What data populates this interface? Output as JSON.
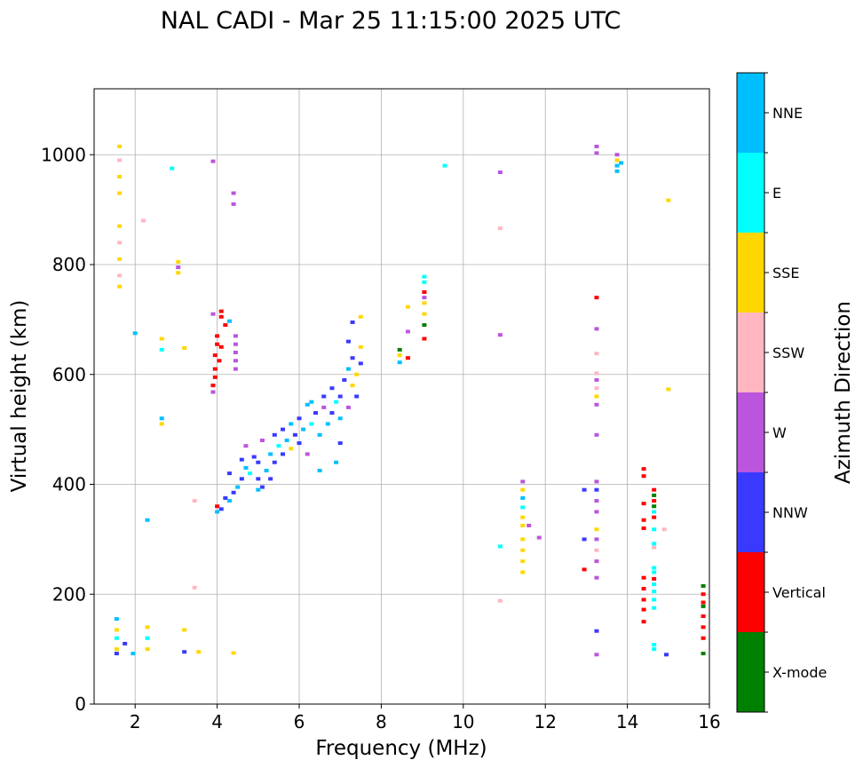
{
  "chart_data": {
    "type": "scatter",
    "title": "NAL CADI - Mar 25 11:15:00 2025 UTC",
    "xlabel": "Frequency (MHz)",
    "ylabel": "Virtual height (km)",
    "xlim": [
      1,
      16
    ],
    "ylim": [
      0,
      1120
    ],
    "xticks": [
      2,
      4,
      6,
      8,
      10,
      12,
      14,
      16
    ],
    "yticks": [
      0,
      200,
      400,
      600,
      800,
      1000
    ],
    "grid": true,
    "colorbar": {
      "label": "Azimuth Direction",
      "categories": [
        {
          "name": "X-mode",
          "color": "#008000"
        },
        {
          "name": "Vertical",
          "color": "#ff0000"
        },
        {
          "name": "NNW",
          "color": "#3a3aff"
        },
        {
          "name": "W",
          "color": "#bb55dd"
        },
        {
          "name": "SSW",
          "color": "#ffb6c1"
        },
        {
          "name": "SSE",
          "color": "#ffd700"
        },
        {
          "name": "E",
          "color": "#00ffff"
        },
        {
          "name": "NNE",
          "color": "#00bfff"
        }
      ]
    },
    "points": [
      {
        "f": 1.62,
        "h": 1015,
        "c": "SSE"
      },
      {
        "f": 1.62,
        "h": 990,
        "c": "SSW"
      },
      {
        "f": 1.62,
        "h": 960,
        "c": "SSE"
      },
      {
        "f": 1.62,
        "h": 930,
        "c": "SSE"
      },
      {
        "f": 1.62,
        "h": 870,
        "c": "SSE"
      },
      {
        "f": 1.62,
        "h": 840,
        "c": "SSW"
      },
      {
        "f": 1.62,
        "h": 810,
        "c": "SSE"
      },
      {
        "f": 1.62,
        "h": 780,
        "c": "SSW"
      },
      {
        "f": 1.62,
        "h": 760,
        "c": "SSE"
      },
      {
        "f": 1.55,
        "h": 155,
        "c": "NNE"
      },
      {
        "f": 1.55,
        "h": 135,
        "c": "SSE"
      },
      {
        "f": 1.55,
        "h": 120,
        "c": "E"
      },
      {
        "f": 1.55,
        "h": 100,
        "c": "SSE"
      },
      {
        "f": 1.55,
        "h": 92,
        "c": "NNW"
      },
      {
        "f": 1.75,
        "h": 110,
        "c": "NNW"
      },
      {
        "f": 1.95,
        "h": 92,
        "c": "NNE"
      },
      {
        "f": 2.3,
        "h": 140,
        "c": "SSE"
      },
      {
        "f": 2.3,
        "h": 120,
        "c": "E"
      },
      {
        "f": 2.3,
        "h": 100,
        "c": "SSE"
      },
      {
        "f": 2.3,
        "h": 335,
        "c": "NNE"
      },
      {
        "f": 2.2,
        "h": 880,
        "c": "SSW"
      },
      {
        "f": 2.0,
        "h": 675,
        "c": "NNE"
      },
      {
        "f": 2.65,
        "h": 665,
        "c": "SSE"
      },
      {
        "f": 2.65,
        "h": 645,
        "c": "E"
      },
      {
        "f": 2.65,
        "h": 520,
        "c": "NNE"
      },
      {
        "f": 2.65,
        "h": 510,
        "c": "SSE"
      },
      {
        "f": 2.9,
        "h": 975,
        "c": "E"
      },
      {
        "f": 3.05,
        "h": 805,
        "c": "SSE"
      },
      {
        "f": 3.05,
        "h": 795,
        "c": "W"
      },
      {
        "f": 3.05,
        "h": 785,
        "c": "SSE"
      },
      {
        "f": 3.2,
        "h": 648,
        "c": "SSE"
      },
      {
        "f": 3.2,
        "h": 95,
        "c": "NNW"
      },
      {
        "f": 3.2,
        "h": 135,
        "c": "SSE"
      },
      {
        "f": 3.45,
        "h": 212,
        "c": "SSW"
      },
      {
        "f": 3.45,
        "h": 370,
        "c": "SSW"
      },
      {
        "f": 3.55,
        "h": 95,
        "c": "SSE"
      },
      {
        "f": 3.9,
        "h": 988,
        "c": "W"
      },
      {
        "f": 4.4,
        "h": 930,
        "c": "W"
      },
      {
        "f": 4.4,
        "h": 910,
        "c": "W"
      },
      {
        "f": 3.9,
        "h": 710,
        "c": "W"
      },
      {
        "f": 4.1,
        "h": 715,
        "c": "Vertical"
      },
      {
        "f": 4.1,
        "h": 705,
        "c": "Vertical"
      },
      {
        "f": 4.2,
        "h": 690,
        "c": "Vertical"
      },
      {
        "f": 4.3,
        "h": 697,
        "c": "NNE"
      },
      {
        "f": 4.0,
        "h": 670,
        "c": "Vertical"
      },
      {
        "f": 4.0,
        "h": 655,
        "c": "Vertical"
      },
      {
        "f": 4.1,
        "h": 650,
        "c": "Vertical"
      },
      {
        "f": 3.95,
        "h": 635,
        "c": "Vertical"
      },
      {
        "f": 4.05,
        "h": 625,
        "c": "Vertical"
      },
      {
        "f": 3.95,
        "h": 610,
        "c": "Vertical"
      },
      {
        "f": 3.95,
        "h": 595,
        "c": "Vertical"
      },
      {
        "f": 3.9,
        "h": 580,
        "c": "Vertical"
      },
      {
        "f": 3.9,
        "h": 568,
        "c": "W"
      },
      {
        "f": 4.45,
        "h": 670,
        "c": "W"
      },
      {
        "f": 4.45,
        "h": 655,
        "c": "W"
      },
      {
        "f": 4.45,
        "h": 640,
        "c": "W"
      },
      {
        "f": 4.45,
        "h": 625,
        "c": "W"
      },
      {
        "f": 4.45,
        "h": 610,
        "c": "W"
      },
      {
        "f": 4.4,
        "h": 93,
        "c": "SSE"
      },
      {
        "f": 4.0,
        "h": 360,
        "c": "Vertical"
      },
      {
        "f": 4.0,
        "h": 350,
        "c": "NNE"
      },
      {
        "f": 4.1,
        "h": 355,
        "c": "NNW"
      },
      {
        "f": 4.2,
        "h": 375,
        "c": "NNW"
      },
      {
        "f": 4.3,
        "h": 370,
        "c": "NNE"
      },
      {
        "f": 4.4,
        "h": 385,
        "c": "NNW"
      },
      {
        "f": 4.5,
        "h": 395,
        "c": "NNE"
      },
      {
        "f": 4.3,
        "h": 420,
        "c": "NNW"
      },
      {
        "f": 4.6,
        "h": 410,
        "c": "NNW"
      },
      {
        "f": 4.7,
        "h": 430,
        "c": "NNE"
      },
      {
        "f": 4.6,
        "h": 445,
        "c": "NNW"
      },
      {
        "f": 4.8,
        "h": 420,
        "c": "E"
      },
      {
        "f": 4.9,
        "h": 450,
        "c": "NNW"
      },
      {
        "f": 5.0,
        "h": 440,
        "c": "NNW"
      },
      {
        "f": 4.7,
        "h": 470,
        "c": "W"
      },
      {
        "f": 5.1,
        "h": 395,
        "c": "NNW"
      },
      {
        "f": 5.0,
        "h": 410,
        "c": "NNW"
      },
      {
        "f": 5.2,
        "h": 425,
        "c": "NNE"
      },
      {
        "f": 5.3,
        "h": 410,
        "c": "NNW"
      },
      {
        "f": 5.3,
        "h": 455,
        "c": "NNE"
      },
      {
        "f": 5.1,
        "h": 480,
        "c": "W"
      },
      {
        "f": 5.4,
        "h": 440,
        "c": "NNW"
      },
      {
        "f": 5.5,
        "h": 470,
        "c": "E"
      },
      {
        "f": 5.4,
        "h": 490,
        "c": "NNW"
      },
      {
        "f": 5.6,
        "h": 455,
        "c": "NNW"
      },
      {
        "f": 5.7,
        "h": 480,
        "c": "NNE"
      },
      {
        "f": 5.6,
        "h": 500,
        "c": "NNW"
      },
      {
        "f": 5.8,
        "h": 465,
        "c": "SSE"
      },
      {
        "f": 5.9,
        "h": 490,
        "c": "NNW"
      },
      {
        "f": 5.8,
        "h": 510,
        "c": "NNE"
      },
      {
        "f": 6.0,
        "h": 475,
        "c": "NNW"
      },
      {
        "f": 6.1,
        "h": 500,
        "c": "NNE"
      },
      {
        "f": 6.0,
        "h": 520,
        "c": "NNW"
      },
      {
        "f": 6.2,
        "h": 545,
        "c": "NNE"
      },
      {
        "f": 6.3,
        "h": 510,
        "c": "E"
      },
      {
        "f": 6.4,
        "h": 530,
        "c": "NNW"
      },
      {
        "f": 6.3,
        "h": 550,
        "c": "NNE"
      },
      {
        "f": 6.5,
        "h": 490,
        "c": "NNE"
      },
      {
        "f": 6.6,
        "h": 540,
        "c": "W"
      },
      {
        "f": 6.7,
        "h": 510,
        "c": "NNE"
      },
      {
        "f": 6.6,
        "h": 560,
        "c": "NNW"
      },
      {
        "f": 6.8,
        "h": 530,
        "c": "NNW"
      },
      {
        "f": 6.9,
        "h": 550,
        "c": "E"
      },
      {
        "f": 6.8,
        "h": 575,
        "c": "NNW"
      },
      {
        "f": 7.0,
        "h": 520,
        "c": "NNE"
      },
      {
        "f": 7.0,
        "h": 560,
        "c": "NNW"
      },
      {
        "f": 7.1,
        "h": 590,
        "c": "NNW"
      },
      {
        "f": 7.2,
        "h": 540,
        "c": "W"
      },
      {
        "f": 7.2,
        "h": 610,
        "c": "NNE"
      },
      {
        "f": 7.3,
        "h": 580,
        "c": "SSE"
      },
      {
        "f": 7.3,
        "h": 630,
        "c": "NNW"
      },
      {
        "f": 7.4,
        "h": 560,
        "c": "NNW"
      },
      {
        "f": 7.4,
        "h": 600,
        "c": "SSE"
      },
      {
        "f": 7.5,
        "h": 620,
        "c": "NNW"
      },
      {
        "f": 7.5,
        "h": 650,
        "c": "SSE"
      },
      {
        "f": 7.3,
        "h": 695,
        "c": "NNW"
      },
      {
        "f": 7.5,
        "h": 705,
        "c": "SSE"
      },
      {
        "f": 7.2,
        "h": 660,
        "c": "NNW"
      },
      {
        "f": 6.9,
        "h": 440,
        "c": "NNE"
      },
      {
        "f": 6.5,
        "h": 425,
        "c": "NNE"
      },
      {
        "f": 7.0,
        "h": 475,
        "c": "NNW"
      },
      {
        "f": 5.0,
        "h": 390,
        "c": "NNE"
      },
      {
        "f": 6.2,
        "h": 455,
        "c": "W"
      },
      {
        "f": 8.45,
        "h": 645,
        "c": "X-mode"
      },
      {
        "f": 8.45,
        "h": 635,
        "c": "SSE"
      },
      {
        "f": 8.45,
        "h": 622,
        "c": "NNE"
      },
      {
        "f": 8.65,
        "h": 630,
        "c": "Vertical"
      },
      {
        "f": 8.65,
        "h": 678,
        "c": "W"
      },
      {
        "f": 8.65,
        "h": 723,
        "c": "SSE"
      },
      {
        "f": 9.05,
        "h": 778,
        "c": "E"
      },
      {
        "f": 9.05,
        "h": 768,
        "c": "E"
      },
      {
        "f": 9.05,
        "h": 750,
        "c": "Vertical"
      },
      {
        "f": 9.05,
        "h": 740,
        "c": "W"
      },
      {
        "f": 9.05,
        "h": 730,
        "c": "SSE"
      },
      {
        "f": 9.05,
        "h": 710,
        "c": "SSE"
      },
      {
        "f": 9.05,
        "h": 690,
        "c": "X-mode"
      },
      {
        "f": 9.05,
        "h": 665,
        "c": "Vertical"
      },
      {
        "f": 9.55,
        "h": 980,
        "c": "E"
      },
      {
        "f": 10.9,
        "h": 968,
        "c": "W"
      },
      {
        "f": 10.9,
        "h": 866,
        "c": "SSW"
      },
      {
        "f": 10.9,
        "h": 672,
        "c": "W"
      },
      {
        "f": 10.9,
        "h": 287,
        "c": "E"
      },
      {
        "f": 10.9,
        "h": 188,
        "c": "SSW"
      },
      {
        "f": 11.45,
        "h": 405,
        "c": "W"
      },
      {
        "f": 11.45,
        "h": 390,
        "c": "SSE"
      },
      {
        "f": 11.45,
        "h": 375,
        "c": "NNE"
      },
      {
        "f": 11.45,
        "h": 358,
        "c": "E"
      },
      {
        "f": 11.45,
        "h": 340,
        "c": "SSE"
      },
      {
        "f": 11.45,
        "h": 325,
        "c": "SSE"
      },
      {
        "f": 11.45,
        "h": 300,
        "c": "SSE"
      },
      {
        "f": 11.45,
        "h": 280,
        "c": "SSE"
      },
      {
        "f": 11.45,
        "h": 260,
        "c": "SSE"
      },
      {
        "f": 11.45,
        "h": 240,
        "c": "SSE"
      },
      {
        "f": 11.6,
        "h": 325,
        "c": "W"
      },
      {
        "f": 11.85,
        "h": 303,
        "c": "W"
      },
      {
        "f": 13.25,
        "h": 1015,
        "c": "W"
      },
      {
        "f": 13.25,
        "h": 1003,
        "c": "W"
      },
      {
        "f": 13.25,
        "h": 740,
        "c": "Vertical"
      },
      {
        "f": 13.25,
        "h": 683,
        "c": "W"
      },
      {
        "f": 13.25,
        "h": 638,
        "c": "SSW"
      },
      {
        "f": 13.25,
        "h": 602,
        "c": "SSW"
      },
      {
        "f": 13.25,
        "h": 590,
        "c": "W"
      },
      {
        "f": 13.25,
        "h": 575,
        "c": "SSW"
      },
      {
        "f": 13.25,
        "h": 560,
        "c": "SSE"
      },
      {
        "f": 13.25,
        "h": 545,
        "c": "W"
      },
      {
        "f": 13.25,
        "h": 490,
        "c": "W"
      },
      {
        "f": 13.25,
        "h": 405,
        "c": "W"
      },
      {
        "f": 13.25,
        "h": 390,
        "c": "NNW"
      },
      {
        "f": 13.25,
        "h": 370,
        "c": "W"
      },
      {
        "f": 13.25,
        "h": 350,
        "c": "W"
      },
      {
        "f": 13.25,
        "h": 318,
        "c": "SSE"
      },
      {
        "f": 13.25,
        "h": 300,
        "c": "W"
      },
      {
        "f": 13.25,
        "h": 280,
        "c": "SSW"
      },
      {
        "f": 13.25,
        "h": 260,
        "c": "W"
      },
      {
        "f": 13.25,
        "h": 230,
        "c": "W"
      },
      {
        "f": 13.25,
        "h": 133,
        "c": "NNW"
      },
      {
        "f": 13.25,
        "h": 90,
        "c": "W"
      },
      {
        "f": 12.95,
        "h": 390,
        "c": "NNW"
      },
      {
        "f": 12.95,
        "h": 300,
        "c": "NNW"
      },
      {
        "f": 12.95,
        "h": 245,
        "c": "Vertical"
      },
      {
        "f": 13.75,
        "h": 1000,
        "c": "W"
      },
      {
        "f": 13.75,
        "h": 990,
        "c": "SSE"
      },
      {
        "f": 13.75,
        "h": 980,
        "c": "NNE"
      },
      {
        "f": 13.75,
        "h": 970,
        "c": "NNE"
      },
      {
        "f": 13.85,
        "h": 985,
        "c": "NNE"
      },
      {
        "f": 14.4,
        "h": 428,
        "c": "Vertical"
      },
      {
        "f": 14.4,
        "h": 415,
        "c": "Vertical"
      },
      {
        "f": 14.4,
        "h": 365,
        "c": "Vertical"
      },
      {
        "f": 14.4,
        "h": 335,
        "c": "Vertical"
      },
      {
        "f": 14.4,
        "h": 320,
        "c": "Vertical"
      },
      {
        "f": 14.4,
        "h": 230,
        "c": "Vertical"
      },
      {
        "f": 14.4,
        "h": 210,
        "c": "Vertical"
      },
      {
        "f": 14.4,
        "h": 190,
        "c": "Vertical"
      },
      {
        "f": 14.4,
        "h": 172,
        "c": "Vertical"
      },
      {
        "f": 14.4,
        "h": 150,
        "c": "Vertical"
      },
      {
        "f": 14.65,
        "h": 390,
        "c": "Vertical"
      },
      {
        "f": 14.65,
        "h": 380,
        "c": "X-mode"
      },
      {
        "f": 14.65,
        "h": 370,
        "c": "Vertical"
      },
      {
        "f": 14.65,
        "h": 360,
        "c": "X-mode"
      },
      {
        "f": 14.65,
        "h": 350,
        "c": "E"
      },
      {
        "f": 14.65,
        "h": 340,
        "c": "Vertical"
      },
      {
        "f": 14.65,
        "h": 318,
        "c": "E"
      },
      {
        "f": 14.65,
        "h": 292,
        "c": "E"
      },
      {
        "f": 14.65,
        "h": 285,
        "c": "SSW"
      },
      {
        "f": 14.65,
        "h": 248,
        "c": "E"
      },
      {
        "f": 14.65,
        "h": 240,
        "c": "E"
      },
      {
        "f": 14.65,
        "h": 228,
        "c": "Vertical"
      },
      {
        "f": 14.65,
        "h": 218,
        "c": "E"
      },
      {
        "f": 14.65,
        "h": 205,
        "c": "E"
      },
      {
        "f": 14.65,
        "h": 190,
        "c": "E"
      },
      {
        "f": 14.65,
        "h": 175,
        "c": "E"
      },
      {
        "f": 14.65,
        "h": 108,
        "c": "E"
      },
      {
        "f": 14.65,
        "h": 100,
        "c": "E"
      },
      {
        "f": 14.9,
        "h": 318,
        "c": "SSW"
      },
      {
        "f": 14.95,
        "h": 90,
        "c": "NNW"
      },
      {
        "f": 15.0,
        "h": 917,
        "c": "SSE"
      },
      {
        "f": 15.0,
        "h": 573,
        "c": "SSE"
      },
      {
        "f": 15.85,
        "h": 215,
        "c": "X-mode"
      },
      {
        "f": 15.85,
        "h": 200,
        "c": "Vertical"
      },
      {
        "f": 15.85,
        "h": 185,
        "c": "Vertical"
      },
      {
        "f": 15.85,
        "h": 178,
        "c": "X-mode"
      },
      {
        "f": 15.85,
        "h": 160,
        "c": "Vertical"
      },
      {
        "f": 15.85,
        "h": 140,
        "c": "Vertical"
      },
      {
        "f": 15.85,
        "h": 120,
        "c": "Vertical"
      },
      {
        "f": 15.85,
        "h": 92,
        "c": "X-mode"
      }
    ]
  }
}
